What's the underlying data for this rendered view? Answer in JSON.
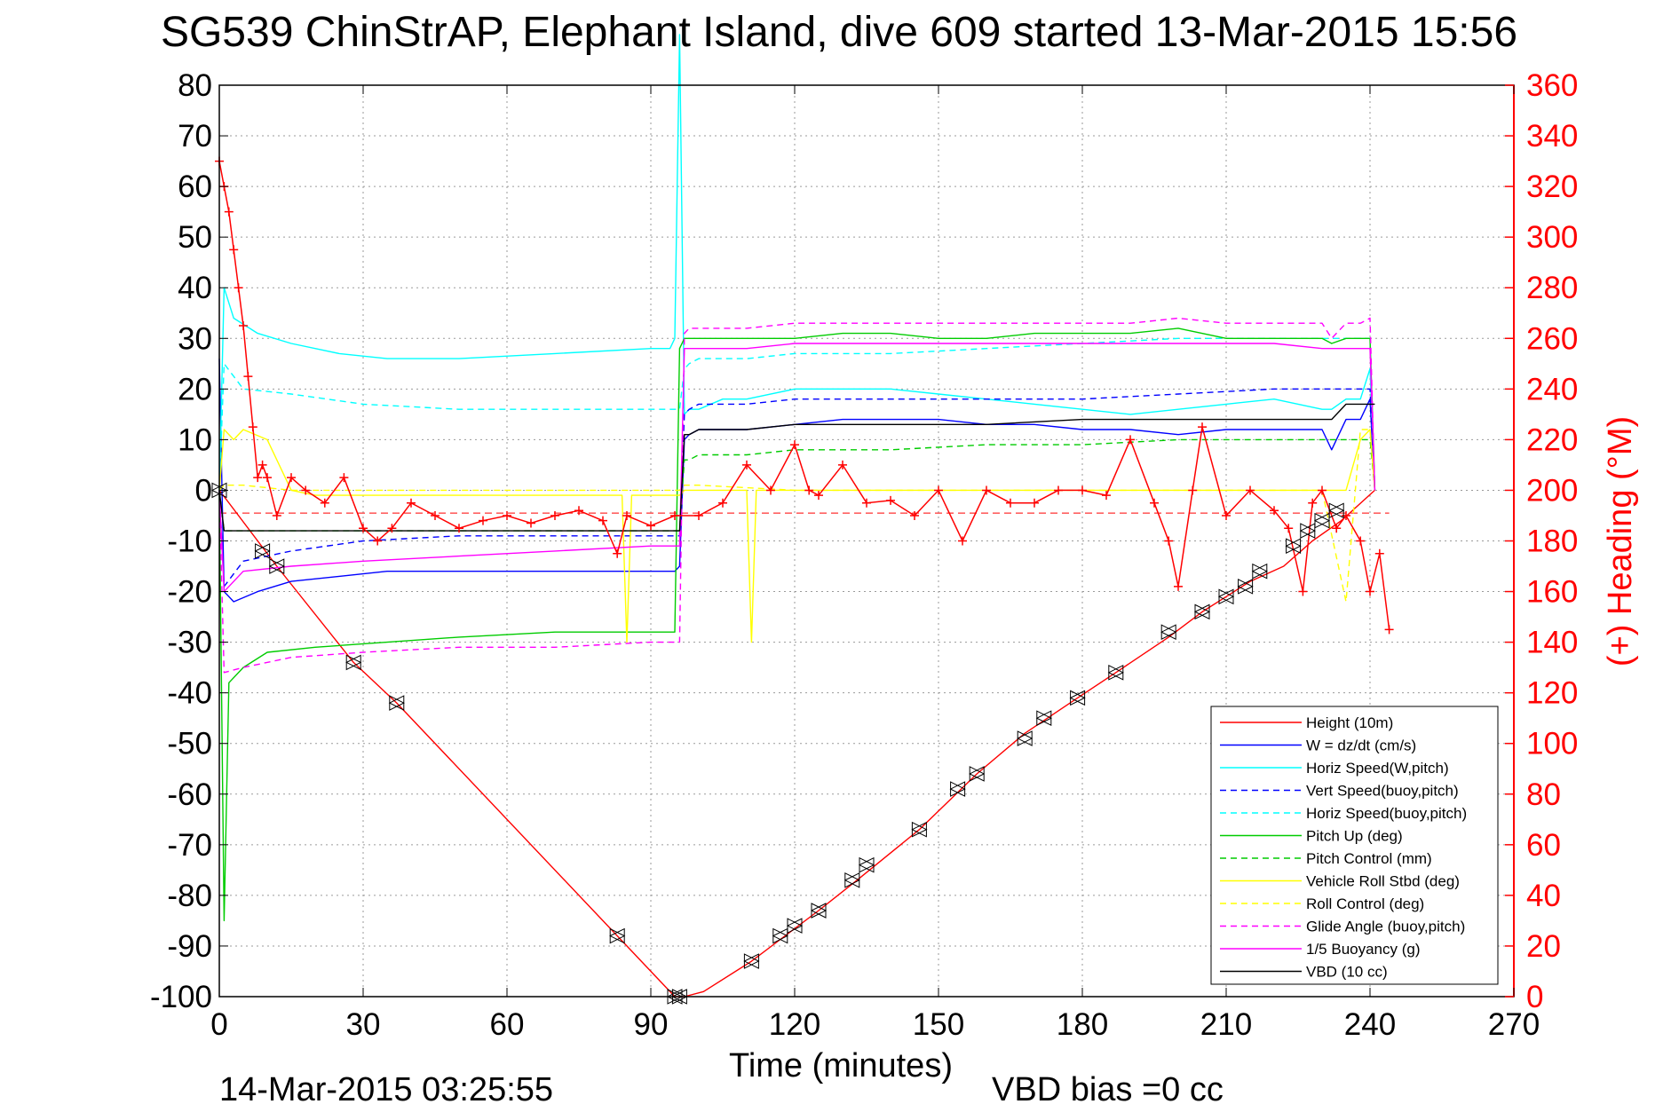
{
  "chart_data": {
    "type": "line",
    "title": "SG539 ChinStrAP, Elephant Island, dive 609 started 13-Mar-2015 15:56",
    "xlabel": "Time (minutes)",
    "ylabel_right": "(+) Heading (°M)",
    "footer_left": "14-Mar-2015 03:25:55",
    "footer_right": "VBD bias =0 cc",
    "xlim": [
      0,
      270
    ],
    "ylim": [
      -100,
      80
    ],
    "ylim_right": [
      0,
      360
    ],
    "x_ticks": [
      "0",
      "30",
      "60",
      "90",
      "120",
      "150",
      "180",
      "210",
      "240",
      "270"
    ],
    "y_ticks": [
      "80",
      "70",
      "60",
      "50",
      "40",
      "30",
      "20",
      "10",
      "0",
      "-10",
      "-20",
      "-30",
      "-40",
      "-50",
      "-60",
      "-70",
      "-80",
      "-90",
      "-100"
    ],
    "y_right_ticks": [
      "360",
      "340",
      "320",
      "300",
      "280",
      "260",
      "240",
      "220",
      "200",
      "180",
      "160",
      "140",
      "120",
      "100",
      "80",
      "60",
      "40",
      "20",
      "0"
    ],
    "grid": true,
    "legend_position": "bottom-right",
    "colors": {
      "axis_right": "#ff0000",
      "height": "#ff0000",
      "w": "#0000ff",
      "horiz_speed": "#00ffff",
      "pitch": "#00cc00",
      "roll": "#ffff00",
      "glide": "#ff00ff",
      "vbd": "#000000",
      "heading": "#ff0000"
    },
    "series": [
      {
        "name": "Height (10m)",
        "color": "#ff0000",
        "dash": false,
        "x": [
          0,
          12,
          28,
          37,
          83,
          95,
          97,
          101,
          111,
          118,
          125,
          133,
          146,
          158,
          168,
          179,
          187,
          198,
          205,
          210,
          215,
          222,
          228,
          234,
          241
        ],
        "y": [
          0,
          -15,
          -34,
          -42,
          -88,
          -100,
          -100,
          -99,
          -93,
          -88,
          -83,
          -77,
          -67,
          -56,
          -48,
          -41,
          -36,
          -29,
          -24,
          -21,
          -18,
          -15,
          -10,
          -6,
          0
        ]
      },
      {
        "name": "W = dz/dt (cm/s)",
        "color": "#0000ff",
        "dash": false,
        "x": [
          0,
          1,
          3,
          8,
          15,
          25,
          35,
          50,
          70,
          90,
          95,
          96,
          97,
          98,
          100,
          105,
          110,
          120,
          130,
          140,
          150,
          160,
          170,
          180,
          190,
          200,
          210,
          220,
          230,
          232,
          235,
          238,
          240,
          241
        ],
        "y": [
          26,
          -20,
          -22,
          -20,
          -18,
          -17,
          -16,
          -16,
          -16,
          -16,
          -16,
          -15,
          10,
          11,
          12,
          12,
          12,
          13,
          14,
          14,
          14,
          13,
          13,
          12,
          12,
          11,
          12,
          12,
          12,
          8,
          14,
          14,
          18,
          0
        ]
      },
      {
        "name": "Horiz Speed(W,pitch)",
        "color": "#00ffff",
        "dash": false,
        "x": [
          0,
          1,
          3,
          8,
          15,
          25,
          35,
          50,
          70,
          90,
          94,
          95,
          96,
          97,
          98,
          100,
          105,
          110,
          120,
          130,
          140,
          150,
          160,
          170,
          180,
          190,
          200,
          210,
          220,
          230,
          232,
          235,
          238,
          240,
          241
        ],
        "y": [
          0,
          40,
          34,
          31,
          29,
          27,
          26,
          26,
          27,
          28,
          28,
          30,
          90,
          15,
          16,
          16,
          18,
          18,
          20,
          20,
          20,
          19,
          18,
          17,
          16,
          15,
          16,
          17,
          18,
          16,
          16,
          18,
          18,
          24,
          0
        ]
      },
      {
        "name": "Vert Speed(buoy,pitch)",
        "color": "#0000ff",
        "dash": true,
        "x": [
          0,
          1,
          5,
          15,
          30,
          50,
          70,
          90,
          95,
          96,
          97,
          98,
          100,
          110,
          120,
          140,
          160,
          180,
          200,
          220,
          230,
          232,
          235,
          238,
          240,
          241
        ],
        "y": [
          0,
          -19,
          -14,
          -12,
          -10,
          -9,
          -9,
          -9,
          -9,
          -9,
          15,
          16,
          17,
          17,
          18,
          18,
          18,
          18,
          19,
          20,
          20,
          20,
          20,
          20,
          20,
          0
        ]
      },
      {
        "name": "Horiz Speed(buoy,pitch)",
        "color": "#00ffff",
        "dash": true,
        "x": [
          0,
          1,
          5,
          15,
          30,
          50,
          70,
          90,
          95,
          96,
          97,
          98,
          100,
          110,
          120,
          140,
          160,
          180,
          200,
          220,
          230,
          232,
          235,
          238,
          240,
          241
        ],
        "y": [
          0,
          25,
          20,
          19,
          17,
          16,
          16,
          16,
          16,
          16,
          24,
          25,
          26,
          26,
          27,
          27,
          28,
          29,
          30,
          30,
          30,
          30,
          30,
          30,
          30,
          0
        ]
      },
      {
        "name": "Pitch Up (deg)",
        "color": "#00cc00",
        "dash": false,
        "x": [
          0,
          1,
          2,
          5,
          10,
          20,
          35,
          50,
          70,
          90,
          95,
          96,
          97,
          98,
          100,
          110,
          120,
          130,
          140,
          150,
          160,
          170,
          180,
          190,
          200,
          210,
          220,
          230,
          232,
          235,
          238,
          240,
          241
        ],
        "y": [
          0,
          -85,
          -38,
          -35,
          -32,
          -31,
          -30,
          -29,
          -28,
          -28,
          -28,
          28,
          30,
          30,
          30,
          30,
          30,
          31,
          31,
          30,
          30,
          31,
          31,
          31,
          32,
          30,
          30,
          30,
          29,
          30,
          30,
          30,
          0
        ]
      },
      {
        "name": "Pitch Control (mm)",
        "color": "#00cc00",
        "dash": true,
        "x": [
          0,
          1,
          5,
          15,
          30,
          50,
          70,
          90,
          95,
          96,
          97,
          98,
          100,
          110,
          120,
          140,
          160,
          180,
          200,
          220,
          230,
          232,
          235,
          238,
          240,
          241
        ],
        "y": [
          0,
          -8,
          -8,
          -8,
          -8,
          -8,
          -8,
          -8,
          -8,
          -8,
          6,
          6,
          7,
          7,
          8,
          8,
          9,
          9,
          10,
          10,
          10,
          10,
          10,
          10,
          10,
          0
        ]
      },
      {
        "name": "Vehicle Roll Stbd (deg)",
        "color": "#ffff00",
        "dash": false,
        "x": [
          0,
          1,
          3,
          5,
          10,
          15,
          20,
          30,
          40,
          50,
          60,
          70,
          80,
          84,
          85,
          86,
          90,
          95,
          96,
          97,
          100,
          110,
          111,
          112,
          120,
          130,
          140,
          150,
          160,
          170,
          180,
          190,
          200,
          205,
          210,
          220,
          230,
          235,
          238,
          240,
          241
        ],
        "y": [
          0,
          12,
          10,
          12,
          10,
          0,
          -1,
          -1,
          -1,
          -1,
          -1,
          -1,
          -1,
          -1,
          -30,
          -1,
          -1,
          -1,
          -1,
          0,
          0,
          0,
          -30,
          0,
          0,
          0,
          0,
          0,
          0,
          0,
          0,
          0,
          0,
          0,
          0,
          0,
          0,
          0,
          10,
          12,
          0
        ]
      },
      {
        "name": "Roll Control (deg)",
        "color": "#ffff00",
        "dash": true,
        "x": [
          0,
          1,
          5,
          15,
          30,
          50,
          70,
          90,
          95,
          96,
          97,
          100,
          120,
          140,
          160,
          180,
          200,
          220,
          230,
          235,
          238,
          240,
          241
        ],
        "y": [
          0,
          1,
          1,
          0,
          0,
          0,
          0,
          0,
          0,
          0,
          1,
          1,
          0,
          0,
          0,
          0,
          0,
          0,
          0,
          -22,
          12,
          12,
          0
        ]
      },
      {
        "name": "Glide Angle (buoy,pitch)",
        "color": "#ff00ff",
        "dash": true,
        "x": [
          0,
          1,
          5,
          15,
          30,
          50,
          70,
          90,
          95,
          96,
          97,
          98,
          100,
          110,
          120,
          130,
          140,
          150,
          160,
          170,
          180,
          190,
          200,
          210,
          220,
          230,
          232,
          235,
          238,
          240,
          241
        ],
        "y": [
          0,
          -36,
          -35,
          -33,
          -32,
          -31,
          -31,
          -30,
          -30,
          -30,
          31,
          32,
          32,
          32,
          33,
          33,
          33,
          33,
          33,
          33,
          33,
          33,
          34,
          33,
          33,
          33,
          30,
          33,
          33,
          34,
          0
        ]
      },
      {
        "name": "1/5 Buoyancy (g)",
        "color": "#ff00ff",
        "dash": false,
        "x": [
          0,
          1,
          5,
          15,
          30,
          50,
          70,
          90,
          95,
          96,
          97,
          98,
          100,
          110,
          120,
          140,
          160,
          180,
          200,
          220,
          230,
          232,
          235,
          238,
          240,
          241
        ],
        "y": [
          0,
          -20,
          -16,
          -15,
          -14,
          -13,
          -12,
          -11,
          -11,
          -11,
          28,
          28,
          28,
          28,
          29,
          29,
          29,
          29,
          29,
          29,
          28,
          28,
          28,
          28,
          28,
          0
        ]
      },
      {
        "name": "VBD (10 cc)",
        "color": "#000000",
        "dash": false,
        "x": [
          0,
          1,
          2,
          5,
          15,
          30,
          50,
          70,
          90,
          95,
          96,
          97,
          98,
          100,
          110,
          120,
          140,
          160,
          180,
          200,
          220,
          230,
          232,
          235,
          238,
          240,
          241
        ],
        "y": [
          0,
          -8,
          -8,
          -8,
          -8,
          -8,
          -8,
          -8,
          -8,
          -8,
          -8,
          11,
          11,
          12,
          12,
          13,
          13,
          13,
          14,
          14,
          14,
          14,
          14,
          17,
          17,
          17,
          17
        ]
      }
    ],
    "heading": {
      "name": "Heading",
      "color": "#ff0000",
      "x": [
        0,
        1,
        2,
        3,
        4,
        5,
        6,
        7,
        8,
        9,
        10,
        12,
        15,
        18,
        22,
        26,
        30,
        33,
        36,
        40,
        45,
        50,
        55,
        60,
        65,
        70,
        75,
        80,
        83,
        85,
        90,
        95,
        100,
        105,
        110,
        115,
        120,
        123,
        125,
        130,
        135,
        140,
        145,
        150,
        155,
        160,
        165,
        170,
        175,
        180,
        185,
        190,
        195,
        198,
        200,
        203,
        205,
        210,
        215,
        220,
        223,
        226,
        228,
        230,
        233,
        235,
        238,
        240,
        242,
        244
      ],
      "y": [
        330,
        320,
        310,
        295,
        280,
        265,
        245,
        225,
        205,
        210,
        205,
        190,
        205,
        200,
        195,
        205,
        185,
        180,
        185,
        195,
        190,
        185,
        188,
        190,
        187,
        190,
        192,
        188,
        175,
        190,
        186,
        190,
        190,
        195,
        210,
        200,
        218,
        200,
        198,
        210,
        195,
        196,
        190,
        200,
        180,
        200,
        195,
        195,
        200,
        200,
        198,
        220,
        195,
        180,
        162,
        200,
        225,
        190,
        200,
        192,
        185,
        160,
        195,
        200,
        185,
        190,
        180,
        160,
        175,
        145
      ]
    },
    "mean_heading_line": 191,
    "triangle_markers": [
      {
        "x": 0,
        "y": 0
      },
      {
        "x": 9,
        "y": -12
      },
      {
        "x": 12,
        "y": -15
      },
      {
        "x": 28,
        "y": -34
      },
      {
        "x": 37,
        "y": -42
      },
      {
        "x": 83,
        "y": -88
      },
      {
        "x": 95,
        "y": -100
      },
      {
        "x": 96,
        "y": -100
      },
      {
        "x": 111,
        "y": -93
      },
      {
        "x": 117,
        "y": -88
      },
      {
        "x": 120,
        "y": -86
      },
      {
        "x": 125,
        "y": -83
      },
      {
        "x": 132,
        "y": -77
      },
      {
        "x": 135,
        "y": -74
      },
      {
        "x": 146,
        "y": -67
      },
      {
        "x": 154,
        "y": -59
      },
      {
        "x": 158,
        "y": -56
      },
      {
        "x": 168,
        "y": -49
      },
      {
        "x": 172,
        "y": -45
      },
      {
        "x": 179,
        "y": -41
      },
      {
        "x": 187,
        "y": -36
      },
      {
        "x": 198,
        "y": -28
      },
      {
        "x": 205,
        "y": -24
      },
      {
        "x": 210,
        "y": -21
      },
      {
        "x": 214,
        "y": -19
      },
      {
        "x": 217,
        "y": -16
      },
      {
        "x": 224,
        "y": -11
      },
      {
        "x": 227,
        "y": -8
      },
      {
        "x": 230,
        "y": -6
      },
      {
        "x": 233,
        "y": -4
      }
    ]
  }
}
